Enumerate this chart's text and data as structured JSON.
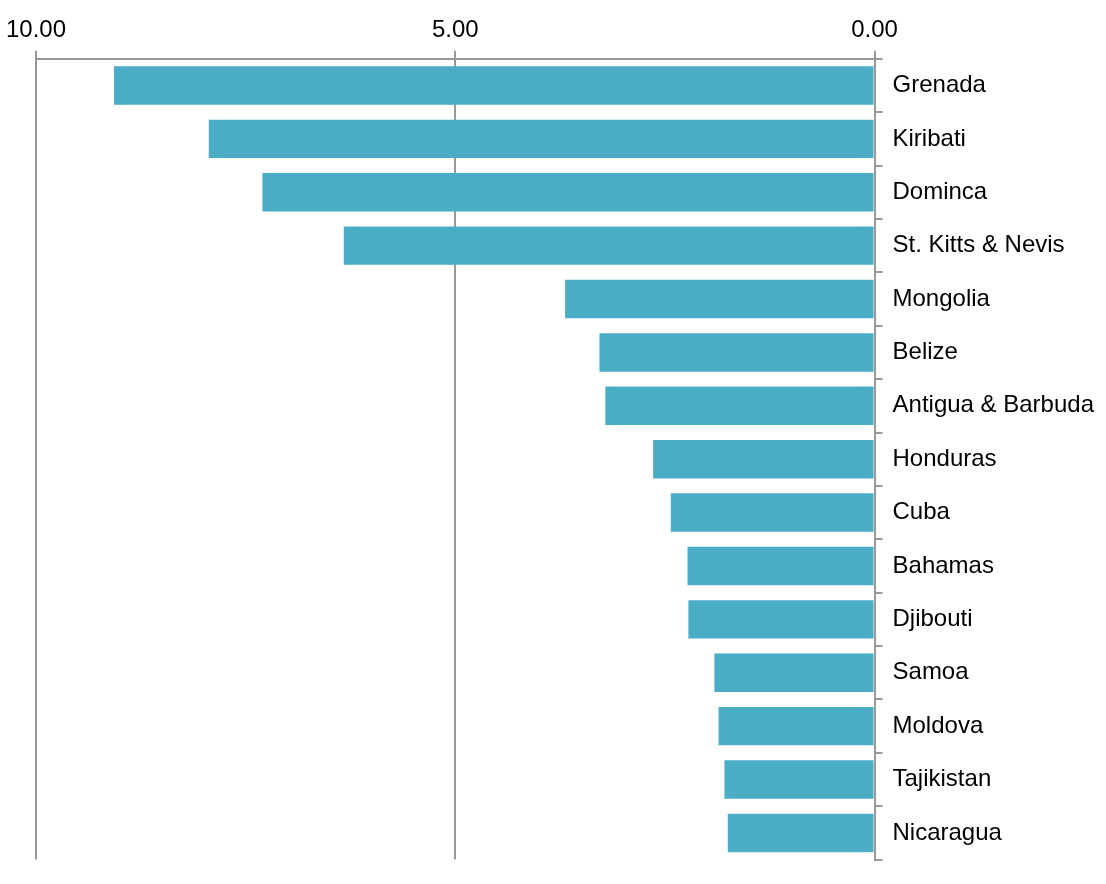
{
  "chart_data": {
    "type": "bar",
    "orientation": "horizontal",
    "categories": [
      "Grenada",
      "Kiribati",
      "Dominca",
      "St. Kitts & Nevis",
      "Mongolia",
      "Belize",
      "Antigua & Barbuda",
      "Honduras",
      "Cuba",
      "Bahamas",
      "Djibouti",
      "Samoa",
      "Moldova",
      "Tajikistan",
      "Nicaragua"
    ],
    "values": [
      9.07,
      7.94,
      7.3,
      6.33,
      3.69,
      3.28,
      3.21,
      2.64,
      2.43,
      2.23,
      2.22,
      1.91,
      1.86,
      1.79,
      1.75
    ],
    "color": "#4bacc6",
    "xlim": [
      10,
      0
    ],
    "xticks": [
      {
        "value": 10,
        "label": "10.00"
      },
      {
        "value": 5,
        "label": "5.00"
      },
      {
        "value": 0,
        "label": "0.00"
      }
    ],
    "grid": "x",
    "legend": false
  }
}
